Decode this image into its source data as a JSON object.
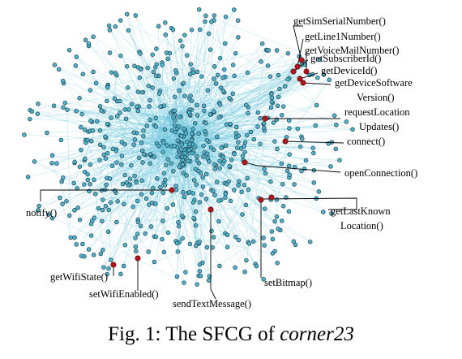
{
  "figure": {
    "caption_prefix": "Fig. 1: The SFCG of ",
    "caption_app": "corner23"
  },
  "colors": {
    "node_fill": "#4fb3cc",
    "edge": "#6cc6dd",
    "sensitive_node": "#b3151b"
  },
  "labels": [
    {
      "id": "getSimSerialNumber",
      "lines": [
        "getSimSerialNumber()"
      ]
    },
    {
      "id": "getLine1Number",
      "lines": [
        "getLine1Number()"
      ]
    },
    {
      "id": "getVoiceMailNumber",
      "lines": [
        "getVoiceMailNumber()"
      ]
    },
    {
      "id": "getSubscriberId",
      "lines": [
        "getSubscriberId()"
      ]
    },
    {
      "id": "getDeviceId",
      "lines": [
        "getDeviceId()"
      ]
    },
    {
      "id": "getDeviceSoftwareVersion",
      "lines": [
        "getDeviceSoftware",
        "Version()"
      ]
    },
    {
      "id": "requestLocationUpdates",
      "lines": [
        "requestLocation",
        "Updates()"
      ]
    },
    {
      "id": "connect",
      "lines": [
        "connect()"
      ]
    },
    {
      "id": "openConnection",
      "lines": [
        "openConnection()"
      ]
    },
    {
      "id": "notify",
      "lines": [
        "notify()"
      ]
    },
    {
      "id": "getLastKnownLocation",
      "lines": [
        "getLastKnown",
        "Location()"
      ]
    },
    {
      "id": "getWifiState",
      "lines": [
        "getWifiState()"
      ]
    },
    {
      "id": "setWifiEnabled",
      "lines": [
        "setWifiEnabled()"
      ]
    },
    {
      "id": "sendTextMessage",
      "lines": [
        "sendTextMessage()"
      ]
    },
    {
      "id": "setBitmap",
      "lines": [
        "setBitmap()"
      ]
    }
  ]
}
